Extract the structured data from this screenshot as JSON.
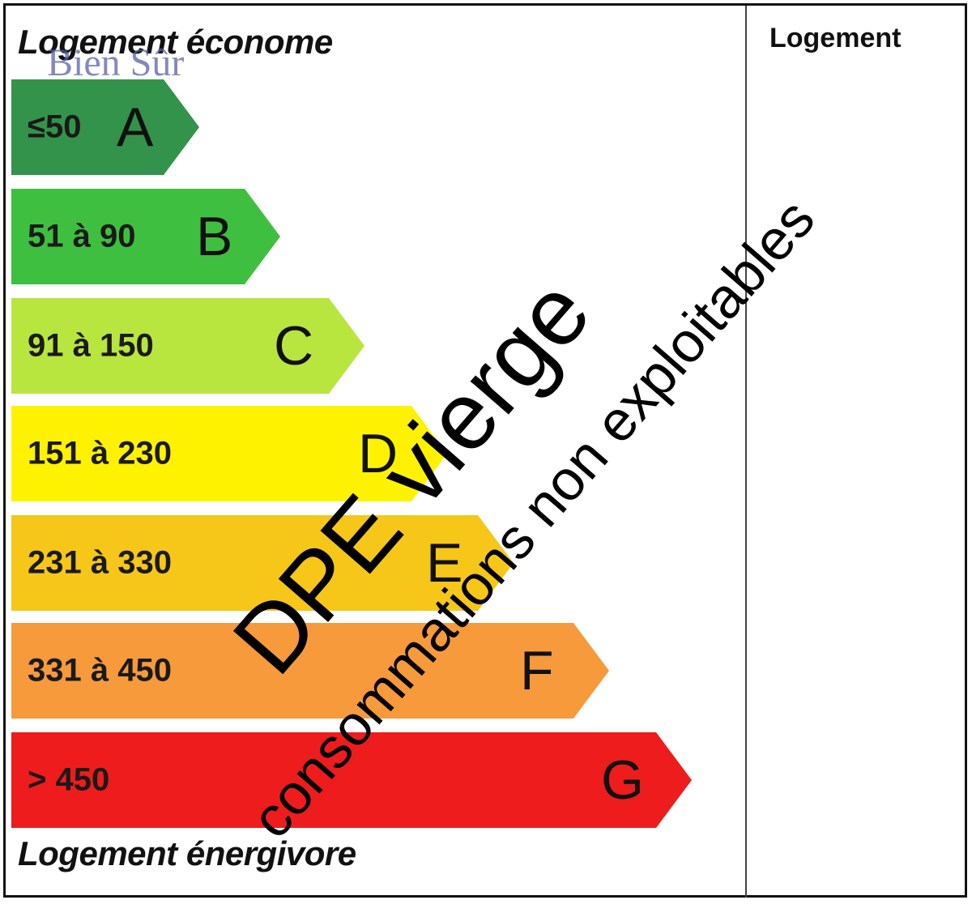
{
  "column_heading": "Logement",
  "top_label": "Logement économe",
  "bottom_label": "Logement énergivore",
  "logo_text": "Bien Sûr",
  "overlay": {
    "main": "DPE vierge",
    "sub": "consommations non exploitables"
  },
  "bands": [
    {
      "letter": "A",
      "range": "≤50",
      "color": "#33934a"
    },
    {
      "letter": "B",
      "range": "51 à 90",
      "color": "#3fbf3f"
    },
    {
      "letter": "C",
      "range": "91 à 150",
      "color": "#b8e63e"
    },
    {
      "letter": "D",
      "range": "151 à 230",
      "color": "#fff200"
    },
    {
      "letter": "E",
      "range": "231 à 330",
      "color": "#f6c619"
    },
    {
      "letter": "F",
      "range": "331 à 450",
      "color": "#f69a3c"
    },
    {
      "letter": "G",
      "range": "> 450",
      "color": "#ee1c1c"
    }
  ]
}
